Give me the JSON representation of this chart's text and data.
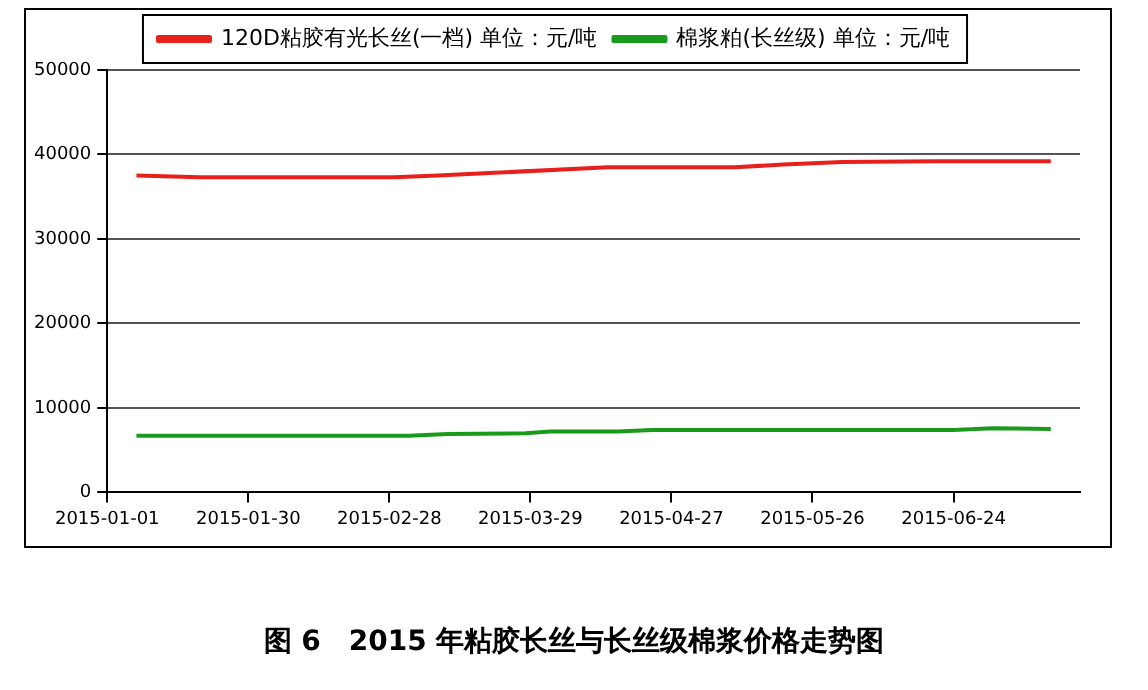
{
  "chart_data": {
    "type": "line",
    "title": "图 6　2015 年粘胶长丝与长丝级棉浆价格走势图",
    "xlim": [
      "2015-01-01",
      "2015-07-20"
    ],
    "xticks": [
      "2015-01-01",
      "2015-01-30",
      "2015-02-28",
      "2015-03-29",
      "2015-04-27",
      "2015-05-26",
      "2015-06-24"
    ],
    "ylim": [
      0,
      50000
    ],
    "yticks": [
      0,
      10000,
      20000,
      30000,
      40000,
      50000
    ],
    "grid": "y",
    "legend": "top",
    "marker": "none",
    "line_style": "solid",
    "series": [
      {
        "name": "120D粘胶有光长丝(一档) 单位：元/吨",
        "color": "#e8201c",
        "x": [
          "2015-01-07",
          "2015-01-20",
          "2015-03-01",
          "2015-03-10",
          "2015-04-14",
          "2015-05-10",
          "2015-05-20",
          "2015-06-01",
          "2015-06-20",
          "2015-07-14"
        ],
        "values": [
          37500,
          37300,
          37300,
          37500,
          38500,
          38500,
          38800,
          39100,
          39200,
          39200
        ]
      },
      {
        "name": "棉浆粕(长丝级) 单位：元/吨",
        "color": "#1a9a1a",
        "x": [
          "2015-01-07",
          "2015-03-04",
          "2015-03-12",
          "2015-03-28",
          "2015-04-02",
          "2015-04-16",
          "2015-04-23",
          "2015-06-24",
          "2015-07-02",
          "2015-07-14"
        ],
        "values": [
          6700,
          6700,
          6900,
          7000,
          7200,
          7200,
          7400,
          7400,
          7600,
          7500
        ]
      }
    ]
  }
}
